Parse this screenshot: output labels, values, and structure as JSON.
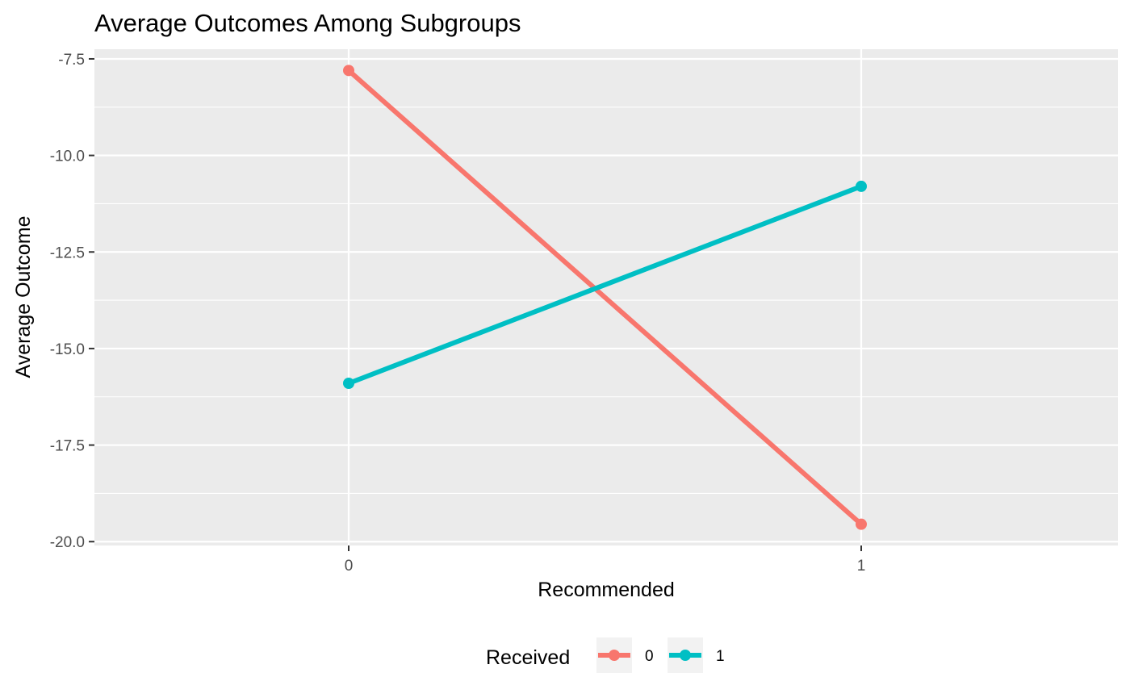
{
  "chart_data": {
    "type": "line",
    "title": "Average Outcomes Among Subgroups",
    "xlabel": "Recommended",
    "ylabel": "Average Outcome",
    "categories": [
      "0",
      "1"
    ],
    "x_tick_labels": [
      "0",
      "1"
    ],
    "y_tick_values": [
      -7.5,
      -10.0,
      -12.5,
      -15.0,
      -17.5,
      -20.0
    ],
    "y_tick_labels": [
      "-7.5",
      "-10.0",
      "-12.5",
      "-15.0",
      "-17.5",
      "-20.0"
    ],
    "ylim": [
      -20.1,
      -7.25
    ],
    "grid": true,
    "legend": {
      "title": "Received",
      "position": "bottom",
      "entries": [
        "0",
        "1"
      ]
    },
    "series": [
      {
        "name": "0",
        "color": "#F8766D",
        "values": [
          -7.8,
          -19.55
        ]
      },
      {
        "name": "1",
        "color": "#00BFC4",
        "values": [
          -15.9,
          -10.8
        ]
      }
    ],
    "panel_background": "#EBEBEB",
    "grid_color": "#FFFFFF"
  }
}
